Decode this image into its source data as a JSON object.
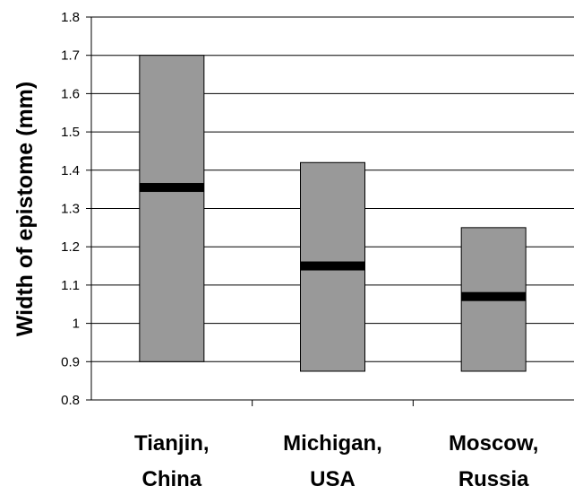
{
  "chart_data": {
    "type": "bar",
    "subtype": "floating-range-with-median",
    "title": "",
    "xlabel": "",
    "ylabel": "Width of epistome (mm)",
    "categories": [
      [
        "Tianjin,",
        "China"
      ],
      [
        "Michigan,",
        "USA"
      ],
      [
        "Moscow,",
        "Russia"
      ]
    ],
    "series": [
      {
        "values": [
          {
            "low": 0.9,
            "high": 1.7,
            "median": 1.355
          },
          {
            "low": 0.875,
            "high": 1.42,
            "median": 1.15
          },
          {
            "low": 0.875,
            "high": 1.25,
            "median": 1.07
          }
        ]
      }
    ],
    "ylim": [
      0.8,
      1.8
    ],
    "yticks": [
      "0.8",
      "0.9",
      "1",
      "1.1",
      "1.2",
      "1.3",
      "1.4",
      "1.5",
      "1.6",
      "1.7",
      "1.8"
    ],
    "grid": true,
    "legend": "none",
    "colors": {
      "bar": "#999999",
      "median": "#000000",
      "grid": "#000000"
    }
  }
}
